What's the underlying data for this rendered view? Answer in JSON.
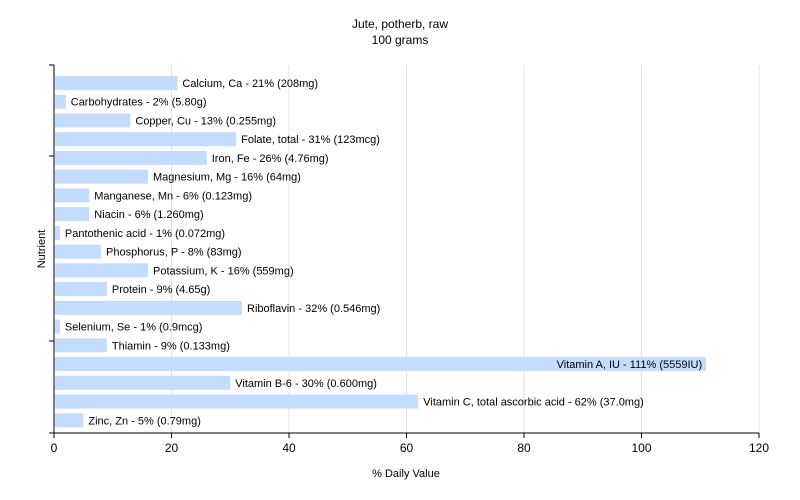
{
  "chart_data": {
    "type": "bar",
    "orientation": "horizontal",
    "title": "Jute, potherb, raw",
    "subtitle": "100 grams",
    "xlabel": "% Daily Value",
    "ylabel": "Nutrient",
    "xlim": [
      0,
      120
    ],
    "xticks": [
      0,
      20,
      40,
      60,
      80,
      100,
      120
    ],
    "grid": true,
    "bar_color": "#c4dcff",
    "categories": [
      "Calcium, Ca",
      "Carbohydrates",
      "Copper, Cu",
      "Folate, total",
      "Iron, Fe",
      "Magnesium, Mg",
      "Manganese, Mn",
      "Niacin",
      "Pantothenic acid",
      "Phosphorus, P",
      "Potassium, K",
      "Protein",
      "Riboflavin",
      "Selenium, Se",
      "Thiamin",
      "Vitamin A, IU",
      "Vitamin B-6",
      "Vitamin C, total ascorbic acid",
      "Zinc, Zn"
    ],
    "values": [
      21,
      2,
      13,
      31,
      26,
      16,
      6,
      6,
      1,
      8,
      16,
      9,
      32,
      1,
      9,
      111,
      30,
      62,
      5
    ],
    "labels": [
      "Calcium, Ca - 21% (208mg)",
      "Carbohydrates - 2% (5.80g)",
      "Copper, Cu - 13% (0.255mg)",
      "Folate, total - 31% (123mcg)",
      "Iron, Fe - 26% (4.76mg)",
      "Magnesium, Mg - 16% (64mg)",
      "Manganese, Mn - 6% (0.123mg)",
      "Niacin - 6% (1.260mg)",
      "Pantothenic acid - 1% (0.072mg)",
      "Phosphorus, P - 8% (83mg)",
      "Potassium, K - 16% (559mg)",
      "Protein - 9% (4.65g)",
      "Riboflavin - 32% (0.546mg)",
      "Selenium, Se - 1% (0.9mcg)",
      "Thiamin - 9% (0.133mg)",
      "Vitamin A, IU - 111% (5559IU)",
      "Vitamin B-6 - 30% (0.600mg)",
      "Vitamin C, total ascorbic acid - 62% (37.0mg)",
      "Zinc, Zn - 5% (0.79mg)"
    ]
  }
}
